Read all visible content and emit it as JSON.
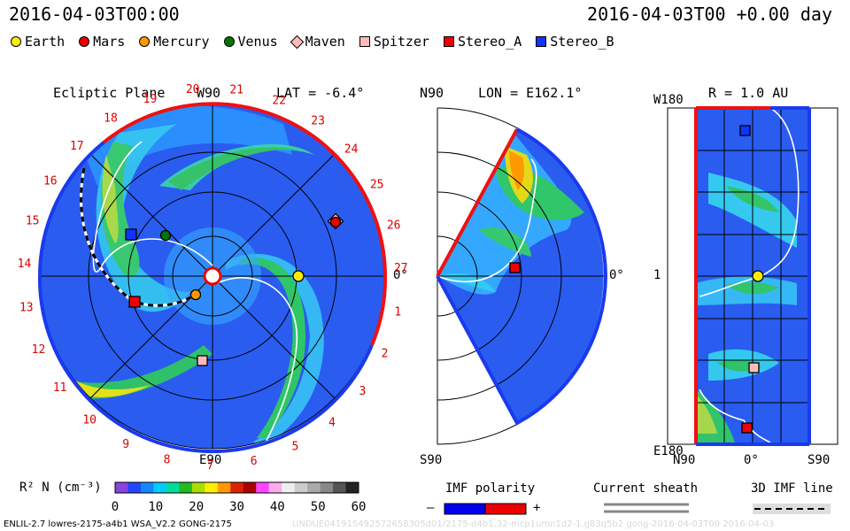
{
  "header": {
    "datetime": "2016-04-03T00:00",
    "run_time": "2016-04-03T00 +0.00 day"
  },
  "legend": [
    {
      "label": "Earth",
      "color": "#ffee00",
      "shape": "circle-icon"
    },
    {
      "label": "Mars",
      "color": "#ee0000",
      "shape": "circle-icon"
    },
    {
      "label": "Mercury",
      "color": "#ff9900",
      "shape": "circle-icon"
    },
    {
      "label": "Venus",
      "color": "#007700",
      "shape": "circle-icon"
    },
    {
      "label": "Maven",
      "color": "#ffbbbb",
      "shape": "diamond-icon"
    },
    {
      "label": "Spitzer",
      "color": "#ffbbbb",
      "shape": "square-icon"
    },
    {
      "label": "Stereo_A",
      "color": "#ee0000",
      "shape": "square-icon"
    },
    {
      "label": "Stereo_B",
      "color": "#1133ff",
      "shape": "square-icon"
    }
  ],
  "panels": {
    "ecliptic": {
      "title": "Ecliptic Plane",
      "top_label": "W90",
      "lat": "LAT = -6.4°",
      "bottom_label": "E90",
      "right_label": "0°"
    },
    "meridional": {
      "lon": "LON = E162.1°",
      "top_label": "N90",
      "bottom_label": "S90",
      "right_label": "0°"
    },
    "radial": {
      "r": "R = 1.0 AU",
      "top_left": "W180",
      "mid_left": "1",
      "bottom_left": "E180",
      "x_ticks": [
        "N90",
        "0°",
        "S90"
      ]
    }
  },
  "carrington_numbers": [
    "20",
    "21",
    "22",
    "23",
    "24",
    "25",
    "26",
    "27",
    "1",
    "2",
    "3",
    "4",
    "5",
    "6",
    "7",
    "8",
    "9",
    "10",
    "11",
    "12",
    "13",
    "14",
    "15",
    "16",
    "17",
    "18",
    "19"
  ],
  "colorbar": {
    "label": "R² N (cm⁻³)",
    "ticks": [
      "0",
      "10",
      "20",
      "30",
      "40",
      "50",
      "60"
    ],
    "colors": [
      "#8844dd",
      "#2244ff",
      "#1188ff",
      "#00ccff",
      "#00dd99",
      "#22bb22",
      "#aadd00",
      "#ffee00",
      "#ff9900",
      "#dd2200",
      "#aa0000",
      "#ff44ff",
      "#ffaaee",
      "#eeeeee",
      "#cccccc",
      "#aaaaaa",
      "#888888",
      "#555555",
      "#222222"
    ]
  },
  "imf": {
    "label": "IMF polarity",
    "minus": "–",
    "plus": "+",
    "neg_color": "#0000ee",
    "pos_color": "#ee0000"
  },
  "sheath": {
    "label": "Current sheath"
  },
  "imf3d": {
    "label": "3D IMF line"
  },
  "footer": {
    "model": "ENLIL-2.7 lowres-2175-a4b1 WSA_V2.2 GONG-2175",
    "watermark": "UNDUE041915492572658305d01/2175-d4b1.32-mcp1umn1d2-1.g83q5b2 gong-2016-04-03T00  2016-04-03"
  },
  "chart_data": {
    "type": "heatmap",
    "panels": [
      "Ecliptic Plane",
      "Meridional (LON = E162.1°)",
      "Radial surface R = 1.0 AU"
    ],
    "quantity": "R² N (cm⁻³)",
    "color_range": [
      0,
      60
    ],
    "datetime": "2016-04-03T00:00"
  }
}
